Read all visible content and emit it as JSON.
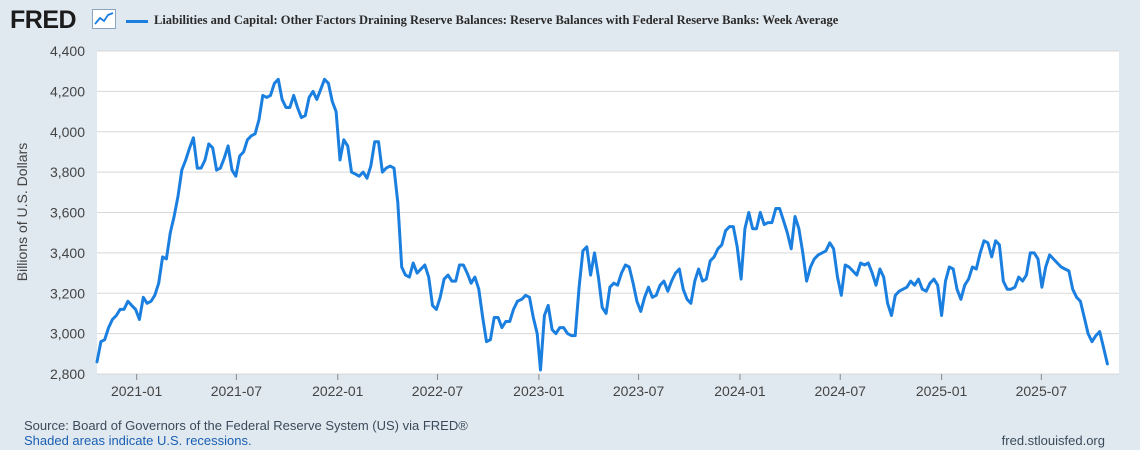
{
  "header": {
    "logo_text": "FRED",
    "logo_icon": "line-graph-icon",
    "title": "Liabilities and Capital: Other Factors Draining Reserve Balances: Reserve Balances with Federal Reserve Banks: Week Average"
  },
  "footer": {
    "source": "Source: Board of Governors of the Federal Reserve System (US) via FRED®",
    "recession_note": "Shaded areas indicate U.S. recessions.",
    "url": "fred.stlouisfed.org"
  },
  "colors": {
    "series": "#1b7fe0",
    "background": "#e1e9f0",
    "plot_background": "#ffffff",
    "grid": "#d8d8d8"
  },
  "chart_data": {
    "type": "line",
    "title": "Liabilities and Capital: Other Factors Draining Reserve Balances: Reserve Balances with Federal Reserve Banks: Week Average",
    "xlabel": "",
    "ylabel": "Billions of U.S. Dollars",
    "ylim": [
      2800,
      4400
    ],
    "xlim": [
      "2020-10-21",
      "2025-11-19"
    ],
    "grid": true,
    "yticks": [
      2800,
      3000,
      3200,
      3400,
      3600,
      3800,
      4000,
      4200,
      4400
    ],
    "ytick_labels": [
      "2,800",
      "3,000",
      "3,200",
      "3,400",
      "3,600",
      "3,800",
      "4,000",
      "4,200",
      "4,400"
    ],
    "xticks": [
      "2021-01-01",
      "2021-07-01",
      "2022-01-01",
      "2022-07-01",
      "2023-01-01",
      "2023-07-01",
      "2024-01-01",
      "2024-07-01",
      "2025-01-01",
      "2025-07-01"
    ],
    "xtick_labels": [
      "2021-01",
      "2021-07",
      "2022-01",
      "2022-07",
      "2023-01",
      "2023-07",
      "2024-01",
      "2024-07",
      "2025-01",
      "2025-07"
    ],
    "series": [
      {
        "name": "Reserve Balances with Federal Reserve Banks: Week Average",
        "points": [
          [
            "2020-10-21",
            2860
          ],
          [
            "2020-10-28",
            2960
          ],
          [
            "2020-11-04",
            2970
          ],
          [
            "2020-11-11",
            3030
          ],
          [
            "2020-11-18",
            3070
          ],
          [
            "2020-11-25",
            3090
          ],
          [
            "2020-12-02",
            3120
          ],
          [
            "2020-12-09",
            3120
          ],
          [
            "2020-12-16",
            3160
          ],
          [
            "2020-12-23",
            3140
          ],
          [
            "2020-12-30",
            3120
          ],
          [
            "2021-01-06",
            3070
          ],
          [
            "2021-01-13",
            3180
          ],
          [
            "2021-01-20",
            3150
          ],
          [
            "2021-01-27",
            3160
          ],
          [
            "2021-02-03",
            3190
          ],
          [
            "2021-02-10",
            3250
          ],
          [
            "2021-02-17",
            3380
          ],
          [
            "2021-02-24",
            3370
          ],
          [
            "2021-03-03",
            3500
          ],
          [
            "2021-03-10",
            3580
          ],
          [
            "2021-03-17",
            3680
          ],
          [
            "2021-03-24",
            3810
          ],
          [
            "2021-03-31",
            3860
          ],
          [
            "2021-04-07",
            3920
          ],
          [
            "2021-04-14",
            3970
          ],
          [
            "2021-04-21",
            3820
          ],
          [
            "2021-04-28",
            3820
          ],
          [
            "2021-05-05",
            3860
          ],
          [
            "2021-05-12",
            3940
          ],
          [
            "2021-05-19",
            3920
          ],
          [
            "2021-05-26",
            3810
          ],
          [
            "2021-06-02",
            3820
          ],
          [
            "2021-06-09",
            3870
          ],
          [
            "2021-06-16",
            3930
          ],
          [
            "2021-06-23",
            3810
          ],
          [
            "2021-06-30",
            3780
          ],
          [
            "2021-07-07",
            3880
          ],
          [
            "2021-07-14",
            3900
          ],
          [
            "2021-07-21",
            3960
          ],
          [
            "2021-07-28",
            3980
          ],
          [
            "2021-08-04",
            3990
          ],
          [
            "2021-08-11",
            4060
          ],
          [
            "2021-08-18",
            4180
          ],
          [
            "2021-08-25",
            4170
          ],
          [
            "2021-09-01",
            4180
          ],
          [
            "2021-09-08",
            4240
          ],
          [
            "2021-09-15",
            4260
          ],
          [
            "2021-09-22",
            4160
          ],
          [
            "2021-09-29",
            4120
          ],
          [
            "2021-10-06",
            4120
          ],
          [
            "2021-10-13",
            4180
          ],
          [
            "2021-10-20",
            4120
          ],
          [
            "2021-10-27",
            4070
          ],
          [
            "2021-11-03",
            4080
          ],
          [
            "2021-11-10",
            4170
          ],
          [
            "2021-11-17",
            4200
          ],
          [
            "2021-11-24",
            4160
          ],
          [
            "2021-12-01",
            4210
          ],
          [
            "2021-12-08",
            4260
          ],
          [
            "2021-12-15",
            4240
          ],
          [
            "2021-12-22",
            4150
          ],
          [
            "2021-12-29",
            4100
          ],
          [
            "2022-01-05",
            3860
          ],
          [
            "2022-01-12",
            3960
          ],
          [
            "2022-01-19",
            3930
          ],
          [
            "2022-01-26",
            3800
          ],
          [
            "2022-02-02",
            3790
          ],
          [
            "2022-02-09",
            3780
          ],
          [
            "2022-02-16",
            3800
          ],
          [
            "2022-02-23",
            3770
          ],
          [
            "2022-03-02",
            3830
          ],
          [
            "2022-03-09",
            3950
          ],
          [
            "2022-03-16",
            3950
          ],
          [
            "2022-03-23",
            3800
          ],
          [
            "2022-03-30",
            3820
          ],
          [
            "2022-04-06",
            3830
          ],
          [
            "2022-04-13",
            3820
          ],
          [
            "2022-04-20",
            3650
          ],
          [
            "2022-04-27",
            3330
          ],
          [
            "2022-05-04",
            3290
          ],
          [
            "2022-05-11",
            3280
          ],
          [
            "2022-05-18",
            3350
          ],
          [
            "2022-05-25",
            3300
          ],
          [
            "2022-06-01",
            3320
          ],
          [
            "2022-06-08",
            3340
          ],
          [
            "2022-06-15",
            3280
          ],
          [
            "2022-06-22",
            3140
          ],
          [
            "2022-06-29",
            3120
          ],
          [
            "2022-07-06",
            3180
          ],
          [
            "2022-07-13",
            3270
          ],
          [
            "2022-07-20",
            3290
          ],
          [
            "2022-07-27",
            3260
          ],
          [
            "2022-08-03",
            3260
          ],
          [
            "2022-08-10",
            3340
          ],
          [
            "2022-08-17",
            3340
          ],
          [
            "2022-08-24",
            3300
          ],
          [
            "2022-08-31",
            3250
          ],
          [
            "2022-09-07",
            3280
          ],
          [
            "2022-09-14",
            3220
          ],
          [
            "2022-09-21",
            3080
          ],
          [
            "2022-09-28",
            2960
          ],
          [
            "2022-10-05",
            2970
          ],
          [
            "2022-10-12",
            3080
          ],
          [
            "2022-10-19",
            3080
          ],
          [
            "2022-10-26",
            3030
          ],
          [
            "2022-11-02",
            3060
          ],
          [
            "2022-11-09",
            3060
          ],
          [
            "2022-11-16",
            3120
          ],
          [
            "2022-11-23",
            3160
          ],
          [
            "2022-12-01",
            3170
          ],
          [
            "2022-12-08",
            3190
          ],
          [
            "2022-12-15",
            3180
          ],
          [
            "2022-12-22",
            3080
          ],
          [
            "2022-12-29",
            3000
          ],
          [
            "2023-01-04",
            2820
          ],
          [
            "2023-01-11",
            3090
          ],
          [
            "2023-01-18",
            3140
          ],
          [
            "2023-01-25",
            3020
          ],
          [
            "2023-02-01",
            3000
          ],
          [
            "2023-02-08",
            3030
          ],
          [
            "2023-02-15",
            3030
          ],
          [
            "2023-02-22",
            3000
          ],
          [
            "2023-03-01",
            2990
          ],
          [
            "2023-03-08",
            2990
          ],
          [
            "2023-03-15",
            3230
          ],
          [
            "2023-03-22",
            3410
          ],
          [
            "2023-03-29",
            3430
          ],
          [
            "2023-04-05",
            3290
          ],
          [
            "2023-04-12",
            3400
          ],
          [
            "2023-04-19",
            3280
          ],
          [
            "2023-04-26",
            3130
          ],
          [
            "2023-05-03",
            3100
          ],
          [
            "2023-05-10",
            3230
          ],
          [
            "2023-05-17",
            3250
          ],
          [
            "2023-05-24",
            3240
          ],
          [
            "2023-05-31",
            3300
          ],
          [
            "2023-06-07",
            3340
          ],
          [
            "2023-06-14",
            3330
          ],
          [
            "2023-06-21",
            3250
          ],
          [
            "2023-06-28",
            3160
          ],
          [
            "2023-07-05",
            3110
          ],
          [
            "2023-07-12",
            3180
          ],
          [
            "2023-07-19",
            3230
          ],
          [
            "2023-07-26",
            3180
          ],
          [
            "2023-08-02",
            3190
          ],
          [
            "2023-08-09",
            3240
          ],
          [
            "2023-08-16",
            3260
          ],
          [
            "2023-08-23",
            3210
          ],
          [
            "2023-08-30",
            3260
          ],
          [
            "2023-09-06",
            3300
          ],
          [
            "2023-09-13",
            3320
          ],
          [
            "2023-09-20",
            3220
          ],
          [
            "2023-09-27",
            3170
          ],
          [
            "2023-10-04",
            3150
          ],
          [
            "2023-10-11",
            3260
          ],
          [
            "2023-10-18",
            3320
          ],
          [
            "2023-10-25",
            3260
          ],
          [
            "2023-11-01",
            3270
          ],
          [
            "2023-11-08",
            3360
          ],
          [
            "2023-11-15",
            3380
          ],
          [
            "2023-11-22",
            3420
          ],
          [
            "2023-11-29",
            3440
          ],
          [
            "2023-12-06",
            3510
          ],
          [
            "2023-12-13",
            3530
          ],
          [
            "2023-12-20",
            3530
          ],
          [
            "2023-12-27",
            3430
          ],
          [
            "2024-01-03",
            3270
          ],
          [
            "2024-01-10",
            3520
          ],
          [
            "2024-01-17",
            3600
          ],
          [
            "2024-01-24",
            3520
          ],
          [
            "2024-01-31",
            3520
          ],
          [
            "2024-02-07",
            3600
          ],
          [
            "2024-02-14",
            3540
          ],
          [
            "2024-02-21",
            3550
          ],
          [
            "2024-02-28",
            3550
          ],
          [
            "2024-03-06",
            3620
          ],
          [
            "2024-03-13",
            3620
          ],
          [
            "2024-03-20",
            3560
          ],
          [
            "2024-03-27",
            3500
          ],
          [
            "2024-04-03",
            3420
          ],
          [
            "2024-04-10",
            3580
          ],
          [
            "2024-04-17",
            3520
          ],
          [
            "2024-04-24",
            3400
          ],
          [
            "2024-05-01",
            3260
          ],
          [
            "2024-05-08",
            3330
          ],
          [
            "2024-05-15",
            3370
          ],
          [
            "2024-05-22",
            3390
          ],
          [
            "2024-05-29",
            3400
          ],
          [
            "2024-06-05",
            3410
          ],
          [
            "2024-06-12",
            3450
          ],
          [
            "2024-06-19",
            3420
          ],
          [
            "2024-06-26",
            3280
          ],
          [
            "2024-07-03",
            3190
          ],
          [
            "2024-07-10",
            3340
          ],
          [
            "2024-07-17",
            3330
          ],
          [
            "2024-07-24",
            3310
          ],
          [
            "2024-07-31",
            3290
          ],
          [
            "2024-08-07",
            3350
          ],
          [
            "2024-08-14",
            3340
          ],
          [
            "2024-08-21",
            3350
          ],
          [
            "2024-08-28",
            3300
          ],
          [
            "2024-09-04",
            3240
          ],
          [
            "2024-09-11",
            3320
          ],
          [
            "2024-09-18",
            3280
          ],
          [
            "2024-09-25",
            3150
          ],
          [
            "2024-10-02",
            3090
          ],
          [
            "2024-10-09",
            3190
          ],
          [
            "2024-10-16",
            3210
          ],
          [
            "2024-10-23",
            3220
          ],
          [
            "2024-10-30",
            3230
          ],
          [
            "2024-11-06",
            3260
          ],
          [
            "2024-11-13",
            3240
          ],
          [
            "2024-11-20",
            3270
          ],
          [
            "2024-11-27",
            3220
          ],
          [
            "2024-12-04",
            3210
          ],
          [
            "2024-12-11",
            3250
          ],
          [
            "2024-12-18",
            3270
          ],
          [
            "2024-12-25",
            3240
          ],
          [
            "2025-01-01",
            3090
          ],
          [
            "2025-01-08",
            3260
          ],
          [
            "2025-01-15",
            3330
          ],
          [
            "2025-01-22",
            3320
          ],
          [
            "2025-01-29",
            3220
          ],
          [
            "2025-02-05",
            3170
          ],
          [
            "2025-02-12",
            3240
          ],
          [
            "2025-02-19",
            3270
          ],
          [
            "2025-02-26",
            3330
          ],
          [
            "2025-03-05",
            3320
          ],
          [
            "2025-03-12",
            3400
          ],
          [
            "2025-03-19",
            3460
          ],
          [
            "2025-03-26",
            3450
          ],
          [
            "2025-04-02",
            3380
          ],
          [
            "2025-04-09",
            3460
          ],
          [
            "2025-04-16",
            3440
          ],
          [
            "2025-04-23",
            3260
          ],
          [
            "2025-04-30",
            3220
          ],
          [
            "2025-05-07",
            3220
          ],
          [
            "2025-05-14",
            3230
          ],
          [
            "2025-05-21",
            3280
          ],
          [
            "2025-05-28",
            3260
          ],
          [
            "2025-06-04",
            3290
          ],
          [
            "2025-06-11",
            3400
          ],
          [
            "2025-06-18",
            3400
          ],
          [
            "2025-06-25",
            3370
          ],
          [
            "2025-07-02",
            3230
          ],
          [
            "2025-07-09",
            3330
          ],
          [
            "2025-07-16",
            3390
          ],
          [
            "2025-07-23",
            3370
          ],
          [
            "2025-07-30",
            3350
          ],
          [
            "2025-08-06",
            3330
          ],
          [
            "2025-08-13",
            3320
          ],
          [
            "2025-08-20",
            3310
          ],
          [
            "2025-08-27",
            3220
          ],
          [
            "2025-09-03",
            3180
          ],
          [
            "2025-09-10",
            3160
          ],
          [
            "2025-09-17",
            3080
          ],
          [
            "2025-09-24",
            3000
          ],
          [
            "2025-10-01",
            2960
          ],
          [
            "2025-10-08",
            2990
          ],
          [
            "2025-10-15",
            3010
          ],
          [
            "2025-10-22",
            2930
          ],
          [
            "2025-10-29",
            2850
          ]
        ]
      }
    ]
  }
}
